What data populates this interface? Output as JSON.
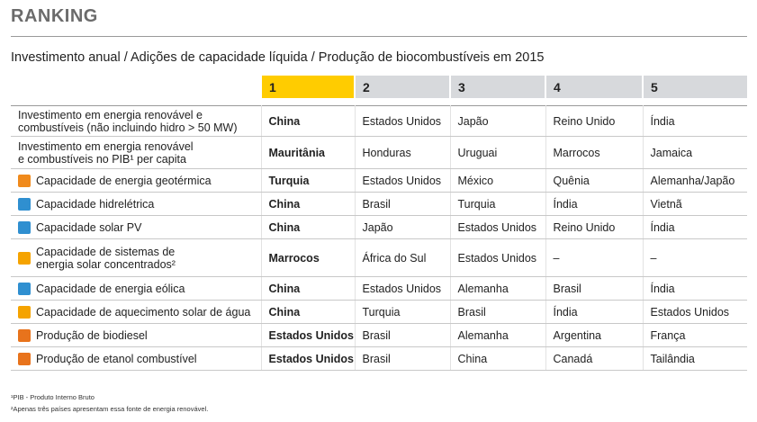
{
  "header": {
    "title": "RANKING",
    "subtitle": "Investimento anual / Adições de capacidade líquida / Produção de biocombustíveis em 2015"
  },
  "table": {
    "header": [
      "1",
      "2",
      "3",
      "4",
      "5"
    ],
    "rows": [
      {
        "label": [
          "Investimento em energia renovável e",
          "combustíveis (não incluindo hidro > 50 MW)"
        ],
        "cells": [
          "China",
          "Estados Unidos",
          "Japão",
          "Reino Unido",
          "Índia"
        ]
      },
      {
        "label": [
          "Investimento em energia renovável",
          "e combustíveis no PIB¹ per capita"
        ],
        "cells": [
          "Mauritânia",
          "Honduras",
          "Uruguai",
          "Marrocos",
          "Jamaica"
        ]
      },
      {
        "label": [
          "Capacidade de energia geotérmica"
        ],
        "cells": [
          "Turquia",
          "Estados Unidos",
          "México",
          "Quênia",
          "Alemanha/Japão"
        ]
      },
      {
        "label": [
          "Capacidade hidrelétrica"
        ],
        "cells": [
          "China",
          "Brasil",
          "Turquia",
          "Índia",
          "Vietnã"
        ]
      },
      {
        "label": [
          "Capacidade solar PV"
        ],
        "cells": [
          "China",
          "Japão",
          "Estados Unidos",
          "Reino Unido",
          "Índia"
        ]
      },
      {
        "label": [
          "Capacidade de sistemas de",
          "energia solar concentrados²"
        ],
        "cells": [
          "Marrocos",
          "África do Sul",
          "Estados Unidos",
          "–",
          "–"
        ]
      },
      {
        "label": [
          "Capacidade de energia eólica"
        ],
        "cells": [
          "China",
          "Estados Unidos",
          "Alemanha",
          "Brasil",
          "Índia"
        ]
      },
      {
        "label": [
          "Capacidade de aquecimento solar de água"
        ],
        "cells": [
          "China",
          "Turquia",
          "Brasil",
          "Índia",
          "Estados Unidos"
        ]
      },
      {
        "label": [
          "Produção de biodiesel"
        ],
        "cells": [
          "Estados Unidos",
          "Brasil",
          "Alemanha",
          "Argentina",
          "França"
        ]
      },
      {
        "label": [
          "Produção de etanol combustível"
        ],
        "cells": [
          "Estados Unidos",
          "Brasil",
          "China",
          "Canadá",
          "Tailândia"
        ]
      }
    ]
  },
  "footnotes": [
    "¹PIB - Produto Interno Bruto",
    "²Apenas três países apresentam essa fonte de energia renovável."
  ]
}
